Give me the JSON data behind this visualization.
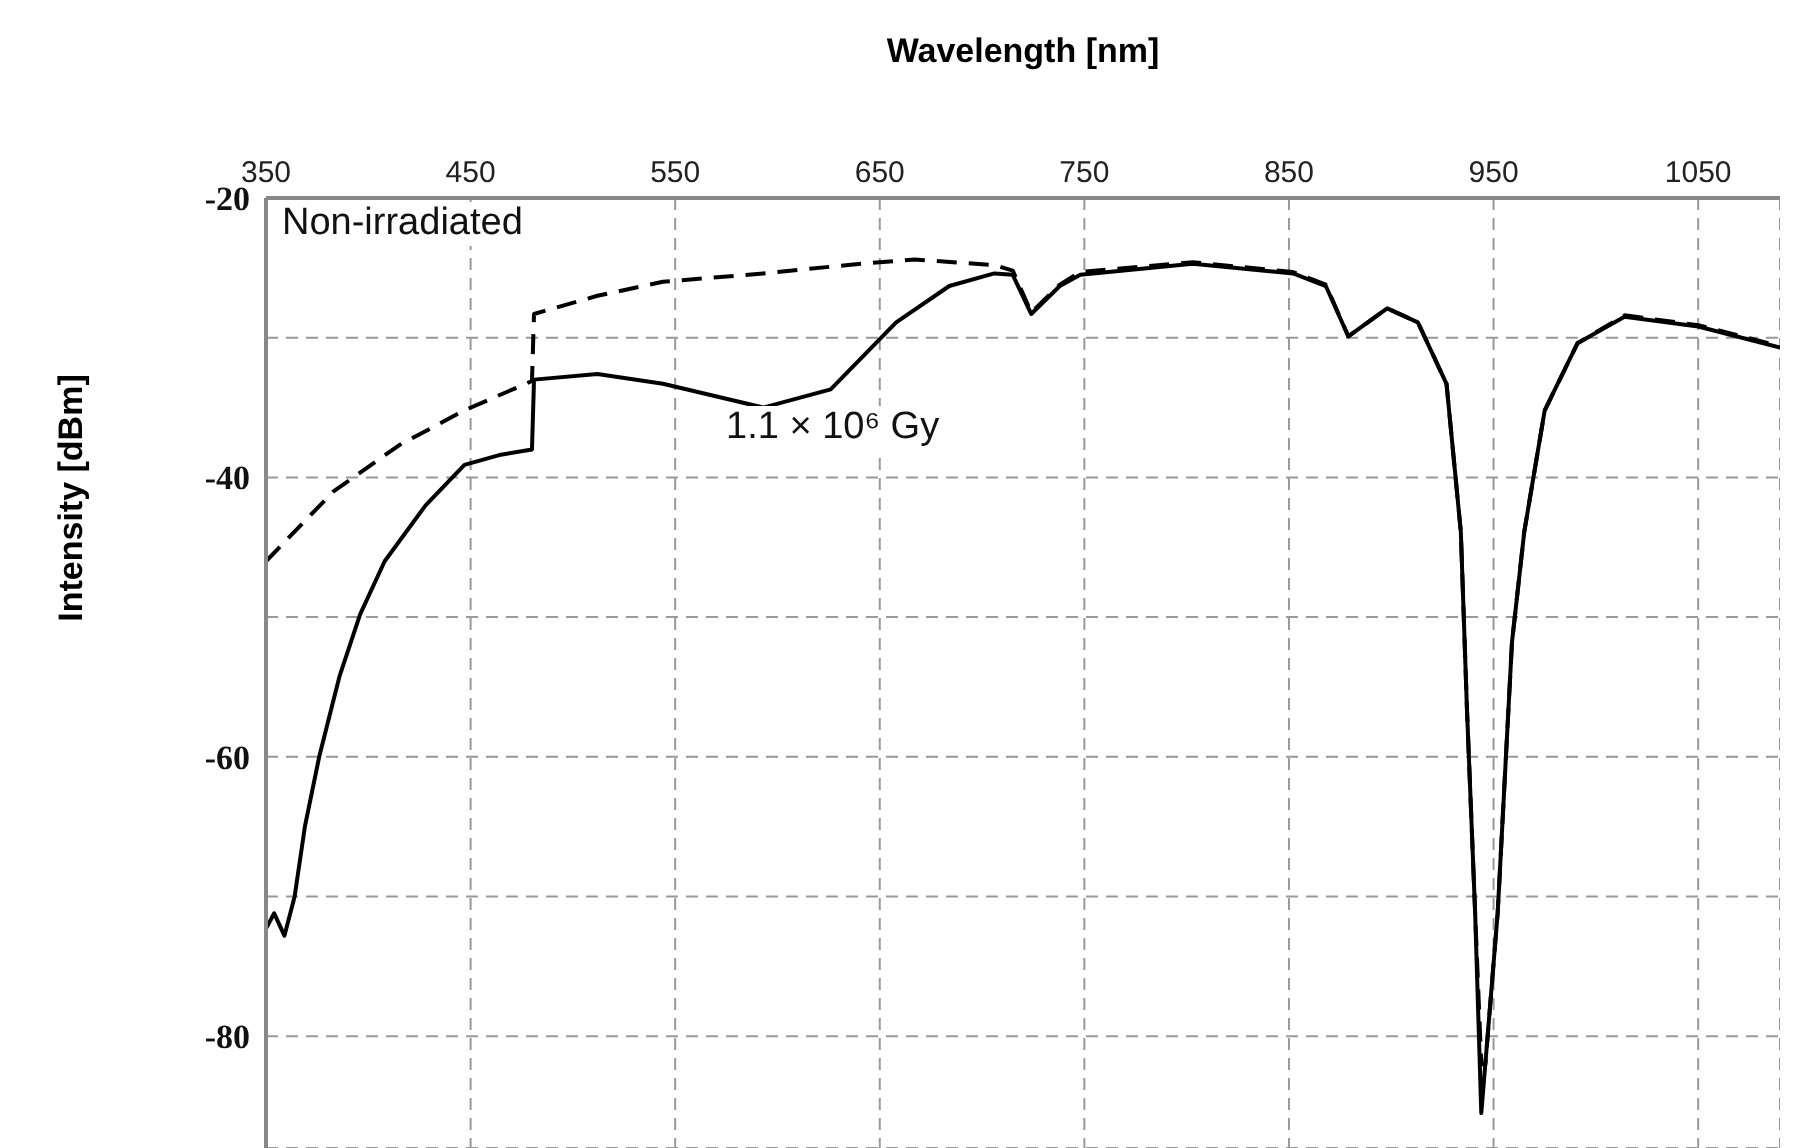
{
  "chart_data": {
    "type": "line",
    "xlabel": "Wavelength [nm]",
    "ylabel": "Intensity [dBm]",
    "xlim": [
      350,
      1090
    ],
    "xticks": [
      350,
      450,
      550,
      650,
      750,
      850,
      950,
      1050
    ],
    "ylim": [
      -88,
      -20
    ],
    "yticks": [
      -20,
      {
        "value": -30,
        "label": null
      },
      -40,
      {
        "value": -50,
        "label": null
      },
      -60,
      {
        "value": -70,
        "label": null
      },
      -80
    ],
    "grid": true,
    "marker": "none",
    "series": [
      {
        "name": "Non-irradiated",
        "color": "#000000",
        "line_style": "dashed",
        "x": [
          350,
          383,
          415,
          447,
          480,
          481,
          512,
          544,
          593,
          641,
          667,
          706,
          715,
          724,
          738,
          748,
          803,
          852,
          868,
          879,
          898,
          913,
          927,
          934,
          937,
          941,
          944,
          946,
          952,
          959,
          965,
          975,
          991,
          1014,
          1050,
          1090
        ],
        "values": [
          -46,
          -41,
          -37.7,
          -35.2,
          -33.1,
          -28.3,
          -27,
          -26,
          -25.4,
          -24.7,
          -24.4,
          -24.8,
          -25.2,
          -28.2,
          -26.2,
          -25.3,
          -24.6,
          -25.3,
          -26.2,
          -29.9,
          -27.9,
          -28.9,
          -33.3,
          -43.9,
          -56.6,
          -71.2,
          -82,
          -82,
          -71.2,
          -51.8,
          -43.9,
          -35.2,
          -30.4,
          -28.4,
          -29.1,
          -30.6
        ]
      },
      {
        "name": "1.1 × 10⁶ Gy",
        "color": "#000000",
        "line_style": "solid",
        "x": [
          350,
          354,
          359,
          364,
          369,
          376,
          386,
          396,
          408,
          428,
          447,
          464,
          480,
          481,
          512,
          544,
          593,
          626,
          658,
          684,
          706,
          715,
          724,
          738,
          748,
          803,
          852,
          868,
          879,
          898,
          913,
          927,
          934,
          937,
          941,
          944,
          952,
          959,
          965,
          975,
          991,
          1014,
          1050,
          1090
        ],
        "values": [
          -72.3,
          -71.2,
          -72.8,
          -70,
          -65,
          -60,
          -54.2,
          -49.8,
          -46,
          -42,
          -39.1,
          -38.4,
          -38,
          -33,
          -32.6,
          -33.3,
          -35,
          -33.7,
          -28.9,
          -26.3,
          -25.4,
          -25.5,
          -28.3,
          -26.3,
          -25.5,
          -24.7,
          -25.4,
          -26.3,
          -29.9,
          -27.9,
          -28.9,
          -33.3,
          -43.9,
          -56.6,
          -71.2,
          -85.5,
          -71.2,
          -51.8,
          -43.9,
          -35.2,
          -30.4,
          -28.5,
          -29.2,
          -30.7
        ]
      }
    ]
  }
}
